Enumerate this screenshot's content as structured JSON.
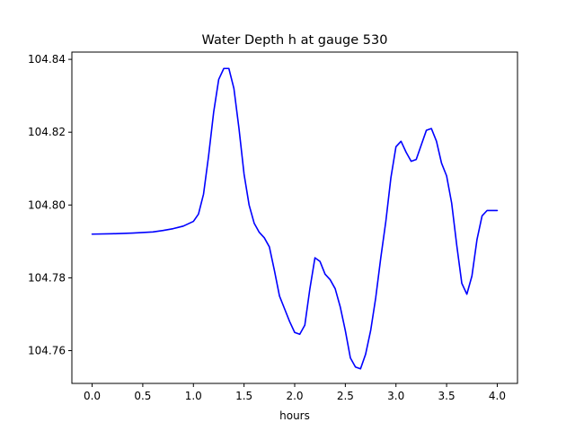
{
  "chart_data": {
    "type": "line",
    "title": "Water Depth h at gauge 530",
    "xlabel": "hours",
    "ylabel": "",
    "xlim": [
      -0.2,
      4.2
    ],
    "ylim": [
      104.751,
      104.842
    ],
    "x_ticks": [
      0.0,
      0.5,
      1.0,
      1.5,
      2.0,
      2.5,
      3.0,
      3.5,
      4.0
    ],
    "x_tick_labels": [
      "0.0",
      "0.5",
      "1.0",
      "1.5",
      "2.0",
      "2.5",
      "3.0",
      "3.5",
      "4.0"
    ],
    "y_ticks": [
      104.76,
      104.78,
      104.8,
      104.82,
      104.84
    ],
    "y_tick_labels": [
      "104.76",
      "104.78",
      "104.80",
      "104.82",
      "104.84"
    ],
    "grid": false,
    "legend": "none",
    "series": [
      {
        "color": "#0000ff",
        "x": [
          0.0,
          0.2,
          0.4,
          0.6,
          0.7,
          0.8,
          0.9,
          1.0,
          1.05,
          1.1,
          1.15,
          1.2,
          1.25,
          1.3,
          1.35,
          1.4,
          1.45,
          1.5,
          1.55,
          1.6,
          1.65,
          1.7,
          1.75,
          1.8,
          1.85,
          1.9,
          1.95,
          2.0,
          2.05,
          2.1,
          2.15,
          2.2,
          2.25,
          2.3,
          2.35,
          2.4,
          2.45,
          2.5,
          2.55,
          2.6,
          2.65,
          2.7,
          2.75,
          2.8,
          2.85,
          2.9,
          2.95,
          3.0,
          3.05,
          3.1,
          3.15,
          3.2,
          3.25,
          3.3,
          3.35,
          3.4,
          3.45,
          3.5,
          3.55,
          3.6,
          3.65,
          3.7,
          3.75,
          3.8,
          3.85,
          3.9,
          3.95,
          4.0
        ],
        "y": [
          104.792,
          104.7921,
          104.7923,
          104.7926,
          104.793,
          104.7935,
          104.7942,
          104.7955,
          104.7975,
          104.803,
          104.8135,
          104.8255,
          104.8345,
          104.8375,
          104.8375,
          104.832,
          104.821,
          104.8085,
          104.8,
          104.795,
          104.7925,
          104.791,
          104.7885,
          104.782,
          104.775,
          104.7715,
          104.768,
          104.765,
          104.7645,
          104.767,
          104.777,
          104.7855,
          104.7845,
          104.781,
          104.7795,
          104.777,
          104.772,
          104.7655,
          104.758,
          104.7555,
          104.755,
          104.759,
          104.7655,
          104.7745,
          104.7855,
          104.7955,
          104.8075,
          104.816,
          104.8175,
          104.8145,
          104.812,
          104.8125,
          104.8165,
          104.8205,
          104.821,
          104.8175,
          104.8115,
          104.808,
          104.8005,
          104.789,
          104.7785,
          104.7755,
          104.7805,
          104.7905,
          104.797,
          104.7985,
          104.7985,
          104.7985
        ]
      }
    ]
  }
}
